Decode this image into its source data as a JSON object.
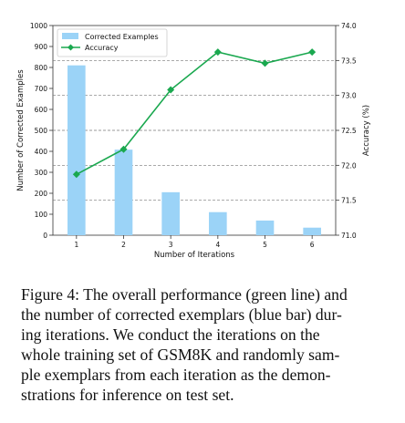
{
  "chart_data": {
    "type": "bar",
    "categories": [
      "1",
      "2",
      "3",
      "4",
      "5",
      "6"
    ],
    "xlabel": "Number of Iterations",
    "ylabel": "Number of Corrected Examples",
    "y2label": "Accuracy (%)",
    "ylim": [
      0,
      1000
    ],
    "y2lim": [
      71.0,
      74.0
    ],
    "yticks": [
      "0",
      "100",
      "200",
      "300",
      "400",
      "500",
      "600",
      "700",
      "800",
      "900",
      "1000"
    ],
    "y2ticks": [
      "71.0",
      "71.5",
      "72.0",
      "72.5",
      "73.0",
      "73.5",
      "74.0"
    ],
    "series": [
      {
        "name": "Corrected Examples",
        "kind": "bar",
        "axis": "left",
        "color": "#9bd3f7",
        "values": [
          810,
          408,
          205,
          110,
          70,
          36
        ]
      },
      {
        "name": "Accuracy",
        "kind": "line",
        "marker": "diamond",
        "axis": "right",
        "color": "#1aa84f",
        "values": [
          71.87,
          72.23,
          73.08,
          73.62,
          73.46,
          73.62
        ]
      }
    ],
    "legend_position": "top-left",
    "grid": "dashed horizontal lines at right-axis ticks"
  },
  "caption": {
    "label": "Figure 4:",
    "lines": [
      "Figure 4: The overall performance (green line) and",
      "the number of corrected exemplars (blue bar) dur-",
      "ing iterations.  We conduct the iterations on the",
      "whole training set of GSM8K and randomly sam-",
      "ple exemplars from each iteration as the demon-",
      "strations for inference on test set."
    ]
  }
}
